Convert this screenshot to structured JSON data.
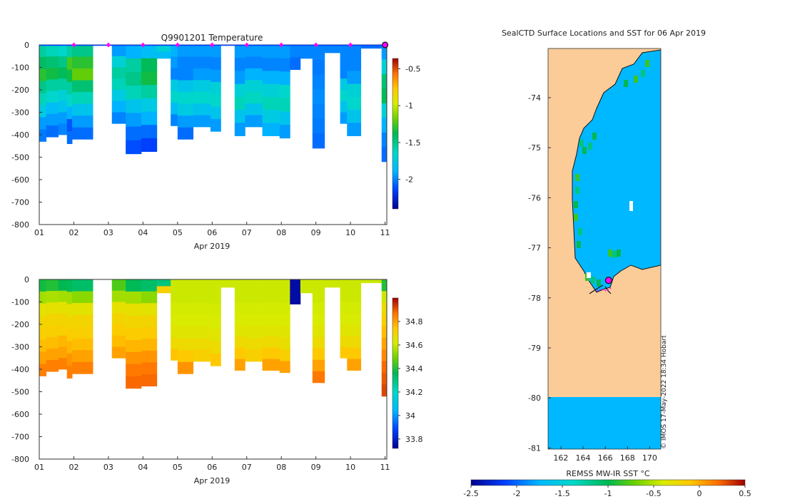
{
  "chart_data": [
    {
      "type": "heatmap",
      "title": "Q9901201  Temperature",
      "xlabel": "Apr 2019",
      "ylabel": "",
      "xlim": [
        1,
        11.05
      ],
      "ylim": [
        -800,
        0
      ],
      "x_ticks": [
        "01",
        "02",
        "03",
        "04",
        "05",
        "06",
        "07",
        "08",
        "09",
        "10",
        "11"
      ],
      "y_ticks": [
        "0",
        "-100",
        "-200",
        "-300",
        "-400",
        "-500",
        "-600",
        "-700",
        "-800"
      ],
      "colorbar": {
        "min": -2.4,
        "max": -0.36,
        "ticks": [
          -0.5,
          -1,
          -1.5,
          -2
        ],
        "tick_labels": [
          "-0.5",
          "-1",
          "-1.5",
          "-2"
        ]
      },
      "surface_markers_days": [
        2,
        3,
        4,
        5,
        6,
        7,
        8,
        9,
        10
      ],
      "current_marker_day": 11,
      "profiles": [
        {
          "x0": 1.0,
          "x1": 1.2,
          "depth": 430,
          "values": [
            -1.55,
            -1.42,
            -1.3,
            -1.5,
            -1.6,
            -1.75,
            -1.95,
            -2.02
          ]
        },
        {
          "x0": 1.2,
          "x1": 1.55,
          "depth": 410,
          "values": [
            -1.6,
            -1.45,
            -1.35,
            -1.55,
            -1.65,
            -1.85,
            -1.95,
            -2.05
          ]
        },
        {
          "x0": 1.55,
          "x1": 1.8,
          "depth": 400,
          "values": [
            -1.65,
            -1.5,
            -1.4,
            -1.55,
            -1.7,
            -1.8,
            -1.95,
            -2.0
          ]
        },
        {
          "x0": 1.8,
          "x1": 1.95,
          "depth": 440,
          "values": [
            -1.55,
            -1.25,
            -1.35,
            -1.55,
            -1.65,
            -1.9,
            -2.1,
            -2.05
          ]
        },
        {
          "x0": 1.95,
          "x1": 2.55,
          "depth": 420,
          "values": [
            -1.5,
            -1.3,
            -1.2,
            -1.45,
            -1.6,
            -1.8,
            -1.95,
            -2.05
          ]
        },
        {
          "x0": 3.1,
          "x1": 3.5,
          "depth": 350,
          "values": [
            -1.95,
            -1.7,
            -1.55,
            -1.6,
            -1.75,
            -1.9,
            -2.0
          ]
        },
        {
          "x0": 3.5,
          "x1": 3.95,
          "depth": 485,
          "values": [
            -1.9,
            -1.55,
            -1.5,
            -1.6,
            -1.8,
            -1.95,
            -2.05,
            -2.12
          ]
        },
        {
          "x0": 3.95,
          "x1": 4.4,
          "depth": 475,
          "values": [
            -1.85,
            -1.4,
            -1.35,
            -1.55,
            -1.75,
            -1.9,
            -2.05,
            -2.15
          ]
        },
        {
          "x0": 4.4,
          "x1": 4.8,
          "depth": 60,
          "values": [
            -1.7,
            -1.85
          ]
        },
        {
          "x0": 4.8,
          "x1": 5.0,
          "depth": 360,
          "values": [
            -1.9,
            -1.95,
            -2.0,
            -1.75,
            -1.65,
            -1.85,
            -2.0
          ]
        },
        {
          "x0": 5.0,
          "x1": 5.45,
          "depth": 420,
          "values": [
            -1.95,
            -2.0,
            -2.0,
            -1.8,
            -1.65,
            -1.75,
            -1.95,
            -2.05
          ]
        },
        {
          "x0": 5.45,
          "x1": 5.95,
          "depth": 365,
          "values": [
            -1.95,
            -2.0,
            -1.95,
            -1.75,
            -1.65,
            -1.8,
            -1.95
          ]
        },
        {
          "x0": 5.95,
          "x1": 6.25,
          "depth": 385,
          "values": [
            -1.95,
            -2.0,
            -1.95,
            -1.7,
            -1.65,
            -1.8,
            -1.95
          ]
        },
        {
          "x0": 6.65,
          "x1": 6.95,
          "depth": 405,
          "values": [
            -1.95,
            -2.0,
            -1.95,
            -1.7,
            -1.6,
            -1.8,
            -1.95
          ]
        },
        {
          "x0": 6.95,
          "x1": 7.45,
          "depth": 365,
          "values": [
            -1.95,
            -2.0,
            -1.9,
            -1.7,
            -1.62,
            -1.8,
            -1.95
          ]
        },
        {
          "x0": 7.45,
          "x1": 7.95,
          "depth": 405,
          "values": [
            -1.95,
            -2.0,
            -1.9,
            -1.7,
            -1.6,
            -1.75,
            -1.9
          ]
        },
        {
          "x0": 7.95,
          "x1": 8.25,
          "depth": 415,
          "values": [
            -1.95,
            -2.0,
            -1.9,
            -1.65,
            -1.6,
            -1.8,
            -1.95
          ]
        },
        {
          "x0": 8.25,
          "x1": 8.55,
          "depth": 110,
          "values": [
            -2.0,
            -2.05
          ]
        },
        {
          "x0": 8.55,
          "x1": 8.9,
          "depth": 60,
          "values": [
            -2.0
          ]
        },
        {
          "x0": 8.9,
          "x1": 9.25,
          "depth": 460,
          "values": [
            -2.0,
            -2.02,
            -2.0,
            -1.98,
            -2.0,
            -2.02,
            -2.05
          ]
        },
        {
          "x0": 9.25,
          "x1": 9.7,
          "depth": 35,
          "values": [
            -2.0
          ]
        },
        {
          "x0": 9.7,
          "x1": 9.9,
          "depth": 350,
          "values": [
            -2.0,
            -2.0,
            -2.0,
            -1.75,
            -1.65,
            -1.8,
            -1.95
          ]
        },
        {
          "x0": 9.9,
          "x1": 10.3,
          "depth": 405,
          "values": [
            -2.0,
            -2.0,
            -1.95,
            -1.7,
            -1.65,
            -1.8,
            -1.95
          ]
        },
        {
          "x0": 10.3,
          "x1": 10.9,
          "depth": 15,
          "values": [
            -2.05
          ]
        },
        {
          "x0": 10.9,
          "x1": 11.05,
          "depth": 520,
          "values": [
            -1.95,
            -1.7,
            -1.45,
            -1.4,
            -1.7,
            -1.9,
            -2.0,
            -2.05
          ]
        }
      ]
    },
    {
      "type": "heatmap",
      "title": "",
      "xlabel": "Apr 2019",
      "ylabel": "",
      "xlim": [
        1,
        11.05
      ],
      "ylim": [
        -800,
        0
      ],
      "x_ticks": [
        "01",
        "02",
        "03",
        "04",
        "05",
        "06",
        "07",
        "08",
        "09",
        "10",
        "11"
      ],
      "y_ticks": [
        "0",
        "-100",
        "-200",
        "-300",
        "-400",
        "-500",
        "-600",
        "-700",
        "-800"
      ],
      "colorbar": {
        "min": 33.72,
        "max": 35.0,
        "ticks": [
          34.8,
          34.6,
          34.4,
          34.2,
          34,
          33.8
        ],
        "tick_labels": [
          "34.8",
          "34.6",
          "34.4",
          "34.2",
          "34",
          "33.8"
        ]
      },
      "profiles": [
        {
          "x0": 1.0,
          "x1": 1.2,
          "depth": 430,
          "values": [
            34.38,
            34.55,
            34.66,
            34.7,
            34.72,
            34.76,
            34.8,
            34.85
          ]
        },
        {
          "x0": 1.2,
          "x1": 1.55,
          "depth": 410,
          "values": [
            34.4,
            34.56,
            34.66,
            34.7,
            34.72,
            34.76,
            34.8,
            34.85
          ]
        },
        {
          "x0": 1.55,
          "x1": 1.8,
          "depth": 400,
          "values": [
            34.36,
            34.55,
            34.65,
            34.7,
            34.72,
            34.77,
            34.8,
            34.85
          ]
        },
        {
          "x0": 1.8,
          "x1": 1.95,
          "depth": 440,
          "values": [
            34.35,
            34.55,
            34.66,
            34.7,
            34.73,
            34.77,
            34.82,
            34.85
          ]
        },
        {
          "x0": 1.95,
          "x1": 2.55,
          "depth": 420,
          "values": [
            34.33,
            34.52,
            34.65,
            34.7,
            34.72,
            34.76,
            34.8,
            34.85
          ]
        },
        {
          "x0": 3.1,
          "x1": 3.5,
          "depth": 350,
          "values": [
            34.45,
            34.55,
            34.66,
            34.7,
            34.73,
            34.76,
            34.8
          ]
        },
        {
          "x0": 3.5,
          "x1": 3.95,
          "depth": 485,
          "values": [
            34.35,
            34.55,
            34.66,
            34.7,
            34.73,
            34.77,
            34.82,
            34.86,
            34.88
          ]
        },
        {
          "x0": 3.95,
          "x1": 4.4,
          "depth": 475,
          "values": [
            34.33,
            34.52,
            34.65,
            34.7,
            34.73,
            34.77,
            34.82,
            34.86,
            34.88
          ]
        },
        {
          "x0": 4.4,
          "x1": 4.8,
          "depth": 60,
          "values": [
            34.3,
            34.72
          ]
        },
        {
          "x0": 4.8,
          "x1": 5.0,
          "depth": 360,
          "values": [
            34.6,
            34.6,
            34.61,
            34.62,
            34.64,
            34.68,
            34.75
          ]
        },
        {
          "x0": 5.0,
          "x1": 5.45,
          "depth": 420,
          "values": [
            34.6,
            34.6,
            34.61,
            34.62,
            34.64,
            34.68,
            34.74,
            34.82
          ]
        },
        {
          "x0": 5.45,
          "x1": 5.95,
          "depth": 365,
          "values": [
            34.6,
            34.6,
            34.61,
            34.62,
            34.64,
            34.68,
            34.72
          ]
        },
        {
          "x0": 5.95,
          "x1": 6.25,
          "depth": 385,
          "values": [
            34.6,
            34.6,
            34.61,
            34.62,
            34.64,
            34.68,
            34.74
          ]
        },
        {
          "x0": 6.25,
          "x1": 6.65,
          "depth": 35,
          "values": [
            34.6
          ]
        },
        {
          "x0": 6.65,
          "x1": 6.95,
          "depth": 405,
          "values": [
            34.6,
            34.6,
            34.61,
            34.62,
            34.64,
            34.68,
            34.74,
            34.8
          ]
        },
        {
          "x0": 6.95,
          "x1": 7.45,
          "depth": 365,
          "values": [
            34.6,
            34.6,
            34.61,
            34.62,
            34.64,
            34.68,
            34.72
          ]
        },
        {
          "x0": 7.45,
          "x1": 7.95,
          "depth": 405,
          "values": [
            34.6,
            34.6,
            34.61,
            34.62,
            34.64,
            34.68,
            34.74,
            34.8
          ]
        },
        {
          "x0": 7.95,
          "x1": 8.25,
          "depth": 415,
          "values": [
            34.6,
            34.6,
            34.61,
            34.62,
            34.64,
            34.67,
            34.72,
            34.8
          ]
        },
        {
          "x0": 8.25,
          "x1": 8.55,
          "depth": 110,
          "values": [
            33.75,
            33.75
          ]
        },
        {
          "x0": 8.55,
          "x1": 8.9,
          "depth": 60,
          "values": [
            34.6
          ]
        },
        {
          "x0": 8.9,
          "x1": 9.25,
          "depth": 460,
          "values": [
            34.6,
            34.6,
            34.61,
            34.62,
            34.64,
            34.68,
            34.74,
            34.8,
            34.86
          ]
        },
        {
          "x0": 9.25,
          "x1": 9.7,
          "depth": 35,
          "values": [
            34.6
          ]
        },
        {
          "x0": 9.7,
          "x1": 9.9,
          "depth": 350,
          "values": [
            34.6,
            34.6,
            34.61,
            34.62,
            34.64,
            34.68,
            34.74
          ]
        },
        {
          "x0": 9.9,
          "x1": 10.3,
          "depth": 405,
          "values": [
            34.6,
            34.6,
            34.61,
            34.62,
            34.64,
            34.68,
            34.74,
            34.8
          ]
        },
        {
          "x0": 10.3,
          "x1": 10.9,
          "depth": 15,
          "values": [
            34.6
          ]
        },
        {
          "x0": 10.9,
          "x1": 11.05,
          "depth": 520,
          "values": [
            34.4,
            34.6,
            34.68,
            34.72,
            34.76,
            34.8,
            34.84,
            34.88,
            34.9,
            34.92
          ]
        }
      ]
    },
    {
      "type": "heatmap",
      "title": "SealCTD Surface Locations and SST for 06 Apr 2019",
      "xlabel": "",
      "ylabel": "",
      "xlim": [
        161,
        171
      ],
      "ylim": [
        -81,
        -73
      ],
      "x_ticks": [
        "162",
        "164",
        "166",
        "168",
        "170"
      ],
      "y_ticks": [
        "-74",
        "-75",
        "-76",
        "-77",
        "-78",
        "-79",
        "-80",
        "-81"
      ],
      "colorbar": {
        "label": "REMSS MW-IR SST °C",
        "min": -2.5,
        "max": 0.5,
        "ticks": [
          -2.5,
          -2,
          -1.5,
          -1,
          -0.5,
          0,
          0.5
        ],
        "tick_labels": [
          "-2.5",
          "-2",
          "-1.5",
          "-1",
          "-0.5",
          "0",
          "0.5"
        ]
      },
      "ocean_sst": -1.8,
      "coastal_sst": -1.0,
      "land_color": "#fbcb98",
      "current_location": {
        "lon": 166.3,
        "lat": -77.65
      },
      "credit": "© IMOS 17-May-2022 18:34 Hobart"
    }
  ],
  "colors": {
    "land": "#fbcb98",
    "marker": "#ff00ff",
    "current_marker_fill": "#ff00ff",
    "axis": "#333333"
  },
  "icons": {
    "surface_marker": "magenta-diamond",
    "current_marker": "magenta-circle"
  }
}
